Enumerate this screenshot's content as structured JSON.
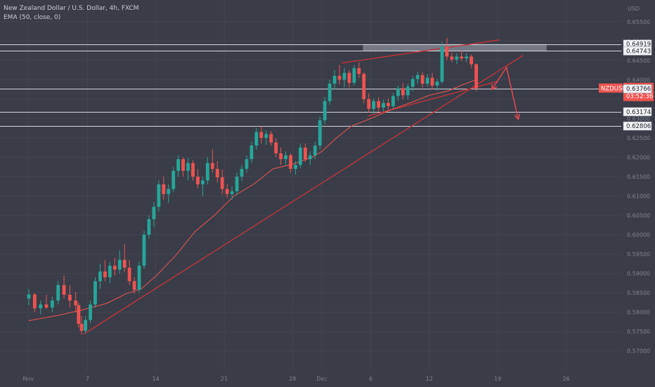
{
  "header": {
    "title": "New Zealand Dollar / U.S. Dollar, 4h, FXCM",
    "indicator": "EMA (50, close, 0)"
  },
  "chart_data": {
    "type": "candlestick",
    "axis_currency": "USD",
    "symbol_tag": "NZDUSD",
    "current_price": "0.63776",
    "countdown": "03:52:36",
    "colors": {
      "background": "#3a3d48",
      "up": "#26a69a",
      "down": "#ef5350",
      "ema": "#ef5350",
      "trendline": "#c2333a",
      "level_line": "#d4d6dc",
      "price_tag": "#ef5350"
    },
    "ylim": [
      0.5665,
      0.6555
    ],
    "y_ticks": [
      "0.65500",
      "0.65000",
      "0.64500",
      "0.64000",
      "0.63500",
      "0.63000",
      "0.62500",
      "0.62000",
      "0.61500",
      "0.61000",
      "0.60500",
      "0.60000",
      "0.59500",
      "0.59000",
      "0.58500",
      "0.58000",
      "0.57500",
      "0.57000"
    ],
    "x_ticks": [
      {
        "label": "Nov",
        "day": -0.05
      },
      {
        "label": "7",
        "day": 6
      },
      {
        "label": "14",
        "day": 13
      },
      {
        "label": "21",
        "day": 20
      },
      {
        "label": "28",
        "day": 27
      },
      {
        "label": "Dec",
        "day": 30
      },
      {
        "label": "6",
        "day": 35
      },
      {
        "label": "12",
        "day": 41
      },
      {
        "label": "19",
        "day": 48
      },
      {
        "label": "26",
        "day": 55
      }
    ],
    "levels": [
      "0.64919",
      "0.64743",
      "0.63776",
      "0.63766",
      "0.63174",
      "0.62806"
    ],
    "resistance_zone": {
      "from_day": 34.2,
      "to_day": 53.0,
      "low": 0.6474,
      "high": 0.6492
    },
    "trendlines": [
      {
        "name": "rising support",
        "points": [
          [
            5.6,
            0.5743
          ],
          [
            50.6,
            0.6463
          ]
        ]
      },
      {
        "name": "channel top",
        "points": [
          [
            32.0,
            0.6443
          ],
          [
            48.2,
            0.6503
          ]
        ]
      },
      {
        "name": "channel bottom",
        "points": [
          [
            34.7,
            0.6306
          ],
          [
            48.0,
            0.6396
          ]
        ]
      }
    ],
    "projection": [
      [
        47.4,
        0.6375
      ],
      [
        48.9,
        0.6432
      ],
      [
        50.1,
        0.6298
      ]
    ],
    "candles": [
      {
        "day": 0.0,
        "o": 0.5835,
        "h": 0.586,
        "l": 0.5818,
        "c": 0.5846
      },
      {
        "day": 0.6,
        "o": 0.5846,
        "h": 0.585,
        "l": 0.58,
        "c": 0.581
      },
      {
        "day": 1.2,
        "o": 0.581,
        "h": 0.583,
        "l": 0.5795,
        "c": 0.582
      },
      {
        "day": 1.8,
        "o": 0.582,
        "h": 0.5845,
        "l": 0.5808,
        "c": 0.5812
      },
      {
        "day": 2.4,
        "o": 0.5812,
        "h": 0.584,
        "l": 0.58,
        "c": 0.583
      },
      {
        "day": 3.0,
        "o": 0.583,
        "h": 0.588,
        "l": 0.582,
        "c": 0.587
      },
      {
        "day": 3.6,
        "o": 0.587,
        "h": 0.5895,
        "l": 0.5835,
        "c": 0.5845
      },
      {
        "day": 4.2,
        "o": 0.5845,
        "h": 0.587,
        "l": 0.5812,
        "c": 0.583
      },
      {
        "day": 4.8,
        "o": 0.583,
        "h": 0.5852,
        "l": 0.58,
        "c": 0.5818
      },
      {
        "day": 5.1,
        "o": 0.5818,
        "h": 0.5825,
        "l": 0.576,
        "c": 0.577
      },
      {
        "day": 5.4,
        "o": 0.577,
        "h": 0.579,
        "l": 0.5742,
        "c": 0.5752
      },
      {
        "day": 5.8,
        "o": 0.5752,
        "h": 0.579,
        "l": 0.5745,
        "c": 0.578
      },
      {
        "day": 6.3,
        "o": 0.578,
        "h": 0.583,
        "l": 0.5772,
        "c": 0.582
      },
      {
        "day": 6.8,
        "o": 0.582,
        "h": 0.589,
        "l": 0.5812,
        "c": 0.588
      },
      {
        "day": 7.3,
        "o": 0.588,
        "h": 0.5925,
        "l": 0.586,
        "c": 0.5905
      },
      {
        "day": 7.8,
        "o": 0.5905,
        "h": 0.5935,
        "l": 0.588,
        "c": 0.589
      },
      {
        "day": 8.3,
        "o": 0.589,
        "h": 0.593,
        "l": 0.5875,
        "c": 0.592
      },
      {
        "day": 8.8,
        "o": 0.592,
        "h": 0.594,
        "l": 0.5895,
        "c": 0.591
      },
      {
        "day": 9.3,
        "o": 0.591,
        "h": 0.596,
        "l": 0.59,
        "c": 0.5935
      },
      {
        "day": 9.8,
        "o": 0.5935,
        "h": 0.5975,
        "l": 0.5905,
        "c": 0.5915
      },
      {
        "day": 10.3,
        "o": 0.5915,
        "h": 0.5935,
        "l": 0.587,
        "c": 0.588
      },
      {
        "day": 10.8,
        "o": 0.588,
        "h": 0.589,
        "l": 0.5848,
        "c": 0.5858
      },
      {
        "day": 11.3,
        "o": 0.5858,
        "h": 0.593,
        "l": 0.585,
        "c": 0.592
      },
      {
        "day": 11.8,
        "o": 0.592,
        "h": 0.601,
        "l": 0.5912,
        "c": 0.6
      },
      {
        "day": 12.3,
        "o": 0.6,
        "h": 0.605,
        "l": 0.599,
        "c": 0.604
      },
      {
        "day": 12.8,
        "o": 0.604,
        "h": 0.6085,
        "l": 0.602,
        "c": 0.6072
      },
      {
        "day": 13.3,
        "o": 0.6072,
        "h": 0.614,
        "l": 0.606,
        "c": 0.613
      },
      {
        "day": 13.8,
        "o": 0.613,
        "h": 0.615,
        "l": 0.609,
        "c": 0.6105
      },
      {
        "day": 14.3,
        "o": 0.6105,
        "h": 0.613,
        "l": 0.6082,
        "c": 0.6118
      },
      {
        "day": 14.8,
        "o": 0.6118,
        "h": 0.6175,
        "l": 0.611,
        "c": 0.6165
      },
      {
        "day": 15.3,
        "o": 0.6165,
        "h": 0.6205,
        "l": 0.615,
        "c": 0.6195
      },
      {
        "day": 15.8,
        "o": 0.6195,
        "h": 0.62,
        "l": 0.615,
        "c": 0.6165
      },
      {
        "day": 16.3,
        "o": 0.6165,
        "h": 0.6198,
        "l": 0.614,
        "c": 0.6185
      },
      {
        "day": 16.8,
        "o": 0.6185,
        "h": 0.6192,
        "l": 0.614,
        "c": 0.615
      },
      {
        "day": 17.3,
        "o": 0.615,
        "h": 0.617,
        "l": 0.612,
        "c": 0.613
      },
      {
        "day": 17.8,
        "o": 0.613,
        "h": 0.615,
        "l": 0.61,
        "c": 0.614
      },
      {
        "day": 18.3,
        "o": 0.614,
        "h": 0.62,
        "l": 0.613,
        "c": 0.6185
      },
      {
        "day": 18.8,
        "o": 0.6185,
        "h": 0.622,
        "l": 0.616,
        "c": 0.617
      },
      {
        "day": 19.3,
        "o": 0.617,
        "h": 0.619,
        "l": 0.6135,
        "c": 0.6148
      },
      {
        "day": 19.8,
        "o": 0.6148,
        "h": 0.6168,
        "l": 0.6105,
        "c": 0.6118
      },
      {
        "day": 20.3,
        "o": 0.6118,
        "h": 0.613,
        "l": 0.6095,
        "c": 0.6105
      },
      {
        "day": 20.8,
        "o": 0.6105,
        "h": 0.6125,
        "l": 0.609,
        "c": 0.6112
      },
      {
        "day": 21.3,
        "o": 0.6112,
        "h": 0.616,
        "l": 0.6102,
        "c": 0.615
      },
      {
        "day": 21.8,
        "o": 0.615,
        "h": 0.618,
        "l": 0.6138,
        "c": 0.617
      },
      {
        "day": 22.3,
        "o": 0.617,
        "h": 0.6205,
        "l": 0.616,
        "c": 0.6195
      },
      {
        "day": 22.8,
        "o": 0.6195,
        "h": 0.624,
        "l": 0.6185,
        "c": 0.623
      },
      {
        "day": 23.3,
        "o": 0.623,
        "h": 0.6275,
        "l": 0.622,
        "c": 0.6265
      },
      {
        "day": 23.8,
        "o": 0.6265,
        "h": 0.628,
        "l": 0.6235,
        "c": 0.625
      },
      {
        "day": 24.3,
        "o": 0.625,
        "h": 0.627,
        "l": 0.6232,
        "c": 0.626
      },
      {
        "day": 24.8,
        "o": 0.626,
        "h": 0.6268,
        "l": 0.623,
        "c": 0.6238
      },
      {
        "day": 25.3,
        "o": 0.6238,
        "h": 0.6248,
        "l": 0.62,
        "c": 0.621
      },
      {
        "day": 25.8,
        "o": 0.621,
        "h": 0.6225,
        "l": 0.618,
        "c": 0.6195
      },
      {
        "day": 26.3,
        "o": 0.6195,
        "h": 0.6215,
        "l": 0.618,
        "c": 0.6205
      },
      {
        "day": 26.8,
        "o": 0.6205,
        "h": 0.621,
        "l": 0.616,
        "c": 0.617
      },
      {
        "day": 27.3,
        "o": 0.617,
        "h": 0.619,
        "l": 0.6155,
        "c": 0.618
      },
      {
        "day": 27.8,
        "o": 0.618,
        "h": 0.6235,
        "l": 0.6172,
        "c": 0.6225
      },
      {
        "day": 28.3,
        "o": 0.6225,
        "h": 0.6235,
        "l": 0.6188,
        "c": 0.6195
      },
      {
        "day": 28.8,
        "o": 0.6195,
        "h": 0.6215,
        "l": 0.618,
        "c": 0.6205
      },
      {
        "day": 29.3,
        "o": 0.6205,
        "h": 0.624,
        "l": 0.6195,
        "c": 0.623
      },
      {
        "day": 29.8,
        "o": 0.623,
        "h": 0.6305,
        "l": 0.622,
        "c": 0.6295
      },
      {
        "day": 30.3,
        "o": 0.6295,
        "h": 0.6355,
        "l": 0.6285,
        "c": 0.6345
      },
      {
        "day": 30.8,
        "o": 0.6345,
        "h": 0.64,
        "l": 0.6335,
        "c": 0.639
      },
      {
        "day": 31.3,
        "o": 0.639,
        "h": 0.6425,
        "l": 0.6375,
        "c": 0.641
      },
      {
        "day": 31.8,
        "o": 0.641,
        "h": 0.6438,
        "l": 0.6388,
        "c": 0.64
      },
      {
        "day": 32.3,
        "o": 0.64,
        "h": 0.643,
        "l": 0.638,
        "c": 0.6418
      },
      {
        "day": 32.8,
        "o": 0.6418,
        "h": 0.6425,
        "l": 0.638,
        "c": 0.6392
      },
      {
        "day": 33.3,
        "o": 0.6392,
        "h": 0.6438,
        "l": 0.6385,
        "c": 0.643
      },
      {
        "day": 33.8,
        "o": 0.643,
        "h": 0.6445,
        "l": 0.6405,
        "c": 0.6415
      },
      {
        "day": 34.3,
        "o": 0.6415,
        "h": 0.642,
        "l": 0.634,
        "c": 0.635
      },
      {
        "day": 34.8,
        "o": 0.635,
        "h": 0.6365,
        "l": 0.6315,
        "c": 0.6325
      },
      {
        "day": 35.3,
        "o": 0.6325,
        "h": 0.6352,
        "l": 0.6312,
        "c": 0.6345
      },
      {
        "day": 35.8,
        "o": 0.6345,
        "h": 0.6355,
        "l": 0.6318,
        "c": 0.6328
      },
      {
        "day": 36.3,
        "o": 0.6328,
        "h": 0.6348,
        "l": 0.6318,
        "c": 0.634
      },
      {
        "day": 36.8,
        "o": 0.634,
        "h": 0.6352,
        "l": 0.6322,
        "c": 0.6332
      },
      {
        "day": 37.3,
        "o": 0.6332,
        "h": 0.6365,
        "l": 0.6325,
        "c": 0.6358
      },
      {
        "day": 37.8,
        "o": 0.6358,
        "h": 0.6385,
        "l": 0.6345,
        "c": 0.6378
      },
      {
        "day": 38.3,
        "o": 0.6378,
        "h": 0.6392,
        "l": 0.635,
        "c": 0.636
      },
      {
        "day": 38.8,
        "o": 0.636,
        "h": 0.639,
        "l": 0.635,
        "c": 0.6382
      },
      {
        "day": 39.3,
        "o": 0.6382,
        "h": 0.641,
        "l": 0.637,
        "c": 0.6402
      },
      {
        "day": 39.8,
        "o": 0.6402,
        "h": 0.642,
        "l": 0.639,
        "c": 0.6412
      },
      {
        "day": 40.3,
        "o": 0.6412,
        "h": 0.642,
        "l": 0.638,
        "c": 0.639
      },
      {
        "day": 40.8,
        "o": 0.639,
        "h": 0.6415,
        "l": 0.6382,
        "c": 0.6405
      },
      {
        "day": 41.3,
        "o": 0.6405,
        "h": 0.6418,
        "l": 0.6375,
        "c": 0.6385
      },
      {
        "day": 41.8,
        "o": 0.6385,
        "h": 0.6402,
        "l": 0.6372,
        "c": 0.6395
      },
      {
        "day": 42.3,
        "o": 0.6395,
        "h": 0.6498,
        "l": 0.639,
        "c": 0.6485
      },
      {
        "day": 42.8,
        "o": 0.6485,
        "h": 0.6508,
        "l": 0.645,
        "c": 0.646
      },
      {
        "day": 43.3,
        "o": 0.646,
        "h": 0.647,
        "l": 0.6445,
        "c": 0.6452
      },
      {
        "day": 43.8,
        "o": 0.6452,
        "h": 0.6468,
        "l": 0.644,
        "c": 0.646
      },
      {
        "day": 44.3,
        "o": 0.646,
        "h": 0.6475,
        "l": 0.6448,
        "c": 0.6455
      },
      {
        "day": 44.8,
        "o": 0.6455,
        "h": 0.6468,
        "l": 0.6445,
        "c": 0.646
      },
      {
        "day": 45.3,
        "o": 0.646,
        "h": 0.6465,
        "l": 0.643,
        "c": 0.644
      },
      {
        "day": 45.8,
        "o": 0.644,
        "h": 0.6442,
        "l": 0.637,
        "c": 0.6378
      }
    ],
    "ema": [
      [
        0.0,
        0.5778
      ],
      [
        3.0,
        0.5792
      ],
      [
        5.5,
        0.5806
      ],
      [
        8.0,
        0.5823
      ],
      [
        10.0,
        0.5848
      ],
      [
        11.5,
        0.586
      ],
      [
        13.0,
        0.5893
      ],
      [
        15.0,
        0.5945
      ],
      [
        17.0,
        0.6008
      ],
      [
        19.0,
        0.605
      ],
      [
        21.0,
        0.61
      ],
      [
        23.0,
        0.613
      ],
      [
        25.0,
        0.617
      ],
      [
        27.0,
        0.6182
      ],
      [
        29.0,
        0.62
      ],
      [
        30.0,
        0.6215
      ],
      [
        31.5,
        0.625
      ],
      [
        33.0,
        0.628
      ],
      [
        35.0,
        0.63
      ],
      [
        37.0,
        0.6322
      ],
      [
        39.0,
        0.634
      ],
      [
        41.0,
        0.636
      ],
      [
        43.0,
        0.6372
      ],
      [
        44.5,
        0.6388
      ],
      [
        45.8,
        0.64
      ]
    ]
  }
}
